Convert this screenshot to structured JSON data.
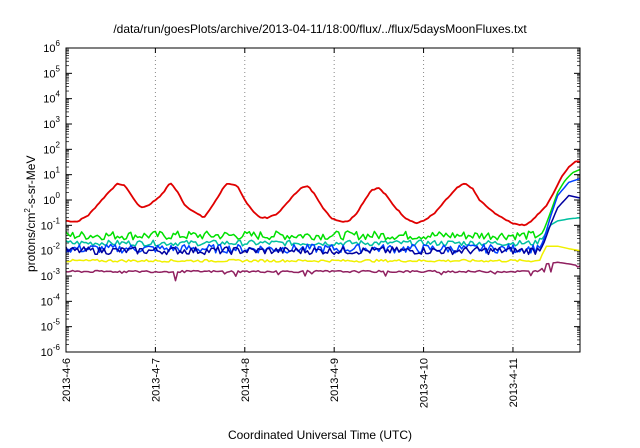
{
  "chart_data": {
    "type": "line",
    "title": "/data/run/goesPlots/archive/2013-04-11/18:00/flux/../flux/5daysMoonFluxes.txt",
    "xlabel": "Coordinated Universal Time (UTC)",
    "ylabel": {
      "prefix": "protons/cm",
      "sup": "2",
      "suffix": "-s-sr-MeV"
    },
    "x_ticks": [
      "2013-4-6",
      "2013-4-7",
      "2013-4-8",
      "2013-4-9",
      "2013-4-10",
      "2013-4-11"
    ],
    "x_range": [
      "2013-04-06T00:00",
      "2013-04-11T18:00"
    ],
    "y_scale": "log",
    "ylim": [
      1e-06,
      1000000.0
    ],
    "y_ticks": [
      {
        "base": "10",
        "exp": "-6"
      },
      {
        "base": "10",
        "exp": "-5"
      },
      {
        "base": "10",
        "exp": "-4"
      },
      {
        "base": "10",
        "exp": "-3"
      },
      {
        "base": "10",
        "exp": "-2"
      },
      {
        "base": "10",
        "exp": "-1"
      },
      {
        "base": "10",
        "exp": "0"
      },
      {
        "base": "10",
        "exp": "1"
      },
      {
        "base": "10",
        "exp": "2"
      },
      {
        "base": "10",
        "exp": "3"
      },
      {
        "base": "10",
        "exp": "4"
      },
      {
        "base": "10",
        "exp": "5"
      },
      {
        "base": "10",
        "exp": "6"
      }
    ],
    "grid": "vertical dotted at day ticks",
    "legend": "none",
    "series": [
      {
        "color": "#e00000",
        "points": [
          [
            "2013-04-06T00:00",
            0.15
          ],
          [
            "2013-04-06T03:00",
            0.14
          ],
          [
            "2013-04-06T06:00",
            0.25
          ],
          [
            "2013-04-06T09:00",
            0.8
          ],
          [
            "2013-04-06T12:00",
            2.5
          ],
          [
            "2013-04-06T14:00",
            4.5
          ],
          [
            "2013-04-06T16:00",
            3.5
          ],
          [
            "2013-04-06T18:00",
            1.2
          ],
          [
            "2013-04-06T20:00",
            0.5
          ],
          [
            "2013-04-06T22:00",
            0.6
          ],
          [
            "2013-04-07T00:00",
            1.0
          ],
          [
            "2013-04-07T02:00",
            1.8
          ],
          [
            "2013-04-07T04:00",
            5.0
          ],
          [
            "2013-04-07T06:00",
            2.0
          ],
          [
            "2013-04-07T08:00",
            0.6
          ],
          [
            "2013-04-07T11:00",
            0.3
          ],
          [
            "2013-04-07T13:00",
            0.2
          ],
          [
            "2013-04-07T15:00",
            0.5
          ],
          [
            "2013-04-07T17:00",
            1.5
          ],
          [
            "2013-04-07T19:00",
            4.5
          ],
          [
            "2013-04-07T22:00",
            3.5
          ],
          [
            "2013-04-08T00:00",
            1.0
          ],
          [
            "2013-04-08T02:00",
            0.4
          ],
          [
            "2013-04-08T04:00",
            0.2
          ],
          [
            "2013-04-08T06:00",
            0.2
          ],
          [
            "2013-04-08T09:00",
            0.3
          ],
          [
            "2013-04-08T12:00",
            1.0
          ],
          [
            "2013-04-08T15:00",
            3.0
          ],
          [
            "2013-04-08T17:00",
            3.5
          ],
          [
            "2013-04-08T19:00",
            1.5
          ],
          [
            "2013-04-08T21:00",
            0.5
          ],
          [
            "2013-04-08T23:00",
            0.2
          ],
          [
            "2013-04-09T02:00",
            0.14
          ],
          [
            "2013-04-09T04:00",
            0.15
          ],
          [
            "2013-04-09T06:00",
            0.3
          ],
          [
            "2013-04-09T08:00",
            0.9
          ],
          [
            "2013-04-09T10:00",
            2.5
          ],
          [
            "2013-04-09T12:00",
            3.0
          ],
          [
            "2013-04-09T14:00",
            1.5
          ],
          [
            "2013-04-09T16:00",
            0.6
          ],
          [
            "2013-04-09T19:00",
            0.2
          ],
          [
            "2013-04-09T22:00",
            0.12
          ],
          [
            "2013-04-10T00:00",
            0.15
          ],
          [
            "2013-04-10T03:00",
            0.3
          ],
          [
            "2013-04-10T06:00",
            1.0
          ],
          [
            "2013-04-10T09:00",
            3.0
          ],
          [
            "2013-04-10T11:00",
            4.5
          ],
          [
            "2013-04-10T13:00",
            3.0
          ],
          [
            "2013-04-10T15:00",
            1.0
          ],
          [
            "2013-04-10T18:00",
            0.4
          ],
          [
            "2013-04-10T21:00",
            0.2
          ],
          [
            "2013-04-11T00:00",
            0.12
          ],
          [
            "2013-04-11T03:00",
            0.1
          ],
          [
            "2013-04-11T05:00",
            0.15
          ],
          [
            "2013-04-11T07:00",
            0.3
          ],
          [
            "2013-04-11T09:00",
            0.6
          ],
          [
            "2013-04-11T11:00",
            2.0
          ],
          [
            "2013-04-11T13:00",
            8.0
          ],
          [
            "2013-04-11T15:00",
            20.0
          ],
          [
            "2013-04-11T17:00",
            35.0
          ],
          [
            "2013-04-11T18:00",
            32.0
          ]
        ]
      },
      {
        "color": "#00e000",
        "points": [
          [
            "2013-04-06T00:00",
            0.04
          ],
          [
            "2013-04-06T12:00",
            0.04
          ],
          [
            "2013-04-07T00:00",
            0.04
          ],
          [
            "2013-04-07T12:00",
            0.04
          ],
          [
            "2013-04-08T00:00",
            0.04
          ],
          [
            "2013-04-08T12:00",
            0.04
          ],
          [
            "2013-04-09T00:00",
            0.04
          ],
          [
            "2013-04-09T12:00",
            0.04
          ],
          [
            "2013-04-10T00:00",
            0.04
          ],
          [
            "2013-04-10T12:00",
            0.04
          ],
          [
            "2013-04-11T00:00",
            0.04
          ],
          [
            "2013-04-11T06:00",
            0.04
          ],
          [
            "2013-04-11T08:00",
            0.05
          ],
          [
            "2013-04-11T10:00",
            0.3
          ],
          [
            "2013-04-11T12:00",
            2.0
          ],
          [
            "2013-04-11T14:00",
            6.0
          ],
          [
            "2013-04-11T16:00",
            12.0
          ],
          [
            "2013-04-11T18:00",
            16.0
          ]
        ]
      },
      {
        "color": "#00c0a0",
        "points": [
          [
            "2013-04-06T00:00",
            0.02
          ],
          [
            "2013-04-07T00:00",
            0.02
          ],
          [
            "2013-04-08T00:00",
            0.02
          ],
          [
            "2013-04-09T00:00",
            0.02
          ],
          [
            "2013-04-10T00:00",
            0.02
          ],
          [
            "2013-04-11T00:00",
            0.02
          ],
          [
            "2013-04-11T06:00",
            0.02
          ],
          [
            "2013-04-11T08:00",
            0.03
          ],
          [
            "2013-04-11T10:00",
            0.1
          ],
          [
            "2013-04-11T12:00",
            0.15
          ],
          [
            "2013-04-11T15:00",
            0.18
          ],
          [
            "2013-04-11T18:00",
            0.2
          ]
        ]
      },
      {
        "color": "#0040ff",
        "points": [
          [
            "2013-04-06T00:00",
            0.012
          ],
          [
            "2013-04-07T00:00",
            0.012
          ],
          [
            "2013-04-08T00:00",
            0.012
          ],
          [
            "2013-04-09T00:00",
            0.012
          ],
          [
            "2013-04-10T00:00",
            0.012
          ],
          [
            "2013-04-11T00:00",
            0.012
          ],
          [
            "2013-04-11T06:00",
            0.012
          ],
          [
            "2013-04-11T08:00",
            0.02
          ],
          [
            "2013-04-11T10:00",
            0.2
          ],
          [
            "2013-04-11T12:00",
            1.5
          ],
          [
            "2013-04-11T15:00",
            5.0
          ],
          [
            "2013-04-11T18:00",
            7.0
          ]
        ]
      },
      {
        "color": "#0000a0",
        "points": [
          [
            "2013-04-06T00:00",
            0.01
          ],
          [
            "2013-04-07T00:00",
            0.01
          ],
          [
            "2013-04-08T00:00",
            0.01
          ],
          [
            "2013-04-09T00:00",
            0.01
          ],
          [
            "2013-04-10T00:00",
            0.01
          ],
          [
            "2013-04-11T00:00",
            0.01
          ],
          [
            "2013-04-11T06:00",
            0.01
          ],
          [
            "2013-04-11T08:00",
            0.015
          ],
          [
            "2013-04-11T10:00",
            0.1
          ],
          [
            "2013-04-11T12:00",
            0.5
          ],
          [
            "2013-04-11T15:00",
            1.5
          ],
          [
            "2013-04-11T18:00",
            1.2
          ]
        ]
      },
      {
        "color": "#f0f000",
        "points": [
          [
            "2013-04-06T00:00",
            0.004
          ],
          [
            "2013-04-07T00:00",
            0.004
          ],
          [
            "2013-04-08T00:00",
            0.004
          ],
          [
            "2013-04-09T00:00",
            0.004
          ],
          [
            "2013-04-10T00:00",
            0.004
          ],
          [
            "2013-04-11T00:00",
            0.004
          ],
          [
            "2013-04-11T07:00",
            0.004
          ],
          [
            "2013-04-11T09:00",
            0.015
          ],
          [
            "2013-04-11T12:00",
            0.015
          ],
          [
            "2013-04-11T15:00",
            0.012
          ],
          [
            "2013-04-11T18:00",
            0.01
          ]
        ]
      },
      {
        "color": "#902060",
        "points": [
          [
            "2013-04-06T00:00",
            0.0015
          ],
          [
            "2013-04-07T00:00",
            0.0015
          ],
          [
            "2013-04-08T00:00",
            0.0015
          ],
          [
            "2013-04-09T00:00",
            0.0015
          ],
          [
            "2013-04-10T00:00",
            0.0015
          ],
          [
            "2013-04-11T00:00",
            0.0015
          ],
          [
            "2013-04-11T07:00",
            0.0015
          ],
          [
            "2013-04-11T09:00",
            0.003
          ],
          [
            "2013-04-11T12:00",
            0.0035
          ],
          [
            "2013-04-11T15:00",
            0.003
          ],
          [
            "2013-04-11T18:00",
            0.0025
          ]
        ]
      }
    ]
  }
}
